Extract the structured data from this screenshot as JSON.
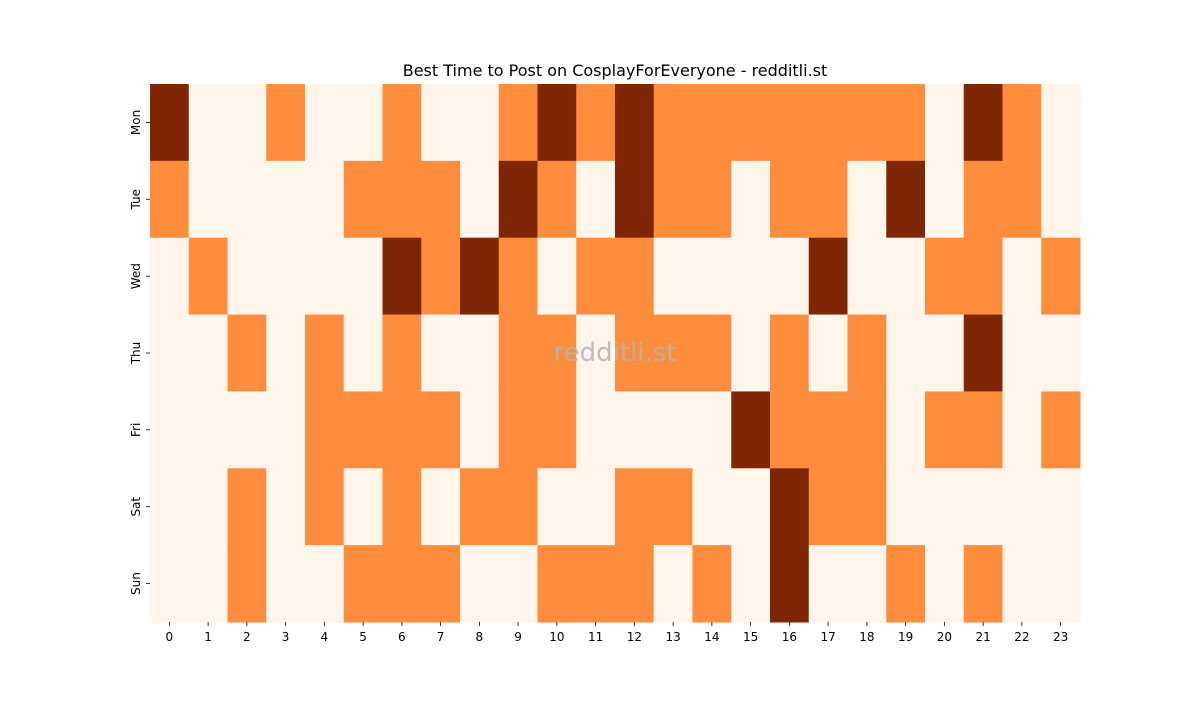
{
  "chart_data": {
    "type": "heatmap",
    "title": "Best Time to Post on CosplayForEveryone - redditli.st",
    "watermark": "redditli.st",
    "xlabel": "",
    "ylabel": "",
    "x_categories": [
      "0",
      "1",
      "2",
      "3",
      "4",
      "5",
      "6",
      "7",
      "8",
      "9",
      "10",
      "11",
      "12",
      "13",
      "14",
      "15",
      "16",
      "17",
      "18",
      "19",
      "20",
      "21",
      "22",
      "23"
    ],
    "y_categories": [
      "Mon",
      "Tue",
      "Wed",
      "Thu",
      "Fri",
      "Sat",
      "Sun"
    ],
    "levels": 3,
    "values": [
      [
        2,
        0,
        0,
        1,
        0,
        0,
        1,
        0,
        0,
        1,
        2,
        1,
        2,
        1,
        1,
        1,
        1,
        1,
        1,
        1,
        0,
        2,
        1,
        0
      ],
      [
        1,
        0,
        0,
        0,
        0,
        1,
        1,
        1,
        0,
        2,
        1,
        0,
        2,
        1,
        1,
        0,
        1,
        1,
        0,
        2,
        0,
        1,
        1,
        0
      ],
      [
        0,
        1,
        0,
        0,
        0,
        0,
        2,
        1,
        2,
        1,
        0,
        1,
        1,
        0,
        0,
        0,
        0,
        2,
        0,
        0,
        1,
        1,
        0,
        1
      ],
      [
        0,
        0,
        1,
        0,
        1,
        0,
        1,
        0,
        0,
        1,
        1,
        0,
        1,
        1,
        1,
        0,
        1,
        0,
        1,
        0,
        0,
        2,
        0,
        0
      ],
      [
        0,
        0,
        0,
        0,
        1,
        1,
        1,
        1,
        0,
        1,
        1,
        0,
        0,
        0,
        0,
        2,
        1,
        1,
        1,
        0,
        1,
        1,
        0,
        1
      ],
      [
        0,
        0,
        1,
        0,
        1,
        0,
        1,
        0,
        1,
        1,
        0,
        0,
        1,
        1,
        0,
        0,
        2,
        1,
        1,
        0,
        0,
        0,
        0,
        0
      ],
      [
        0,
        0,
        1,
        0,
        0,
        1,
        1,
        1,
        0,
        0,
        1,
        1,
        1,
        0,
        1,
        0,
        2,
        0,
        0,
        1,
        0,
        1,
        0,
        0
      ]
    ],
    "colors": [
      "#fff5eb",
      "#fd8d3c",
      "#7f2704"
    ],
    "colorbar": false,
    "grid": false
  }
}
